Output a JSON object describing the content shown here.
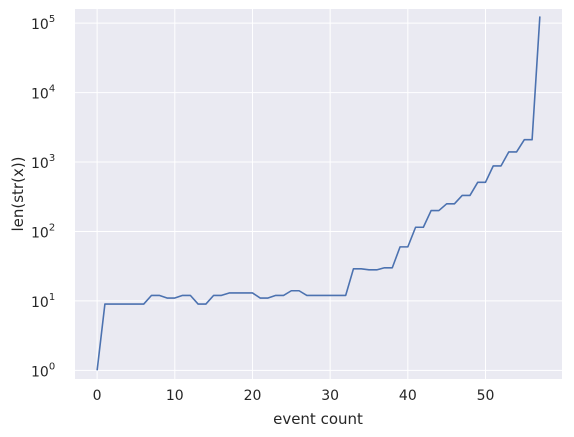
{
  "chart_data": {
    "type": "line",
    "xlabel": "event count",
    "ylabel": "len(str(x))",
    "yscale": "log",
    "xlim": [
      -2.85,
      59.85
    ],
    "ylim": [
      0.75,
      160000
    ],
    "grid": true,
    "background": "#eaeaf2",
    "line_color": "#4c72b0",
    "x_ticks": [
      0,
      10,
      20,
      30,
      40,
      50
    ],
    "x_tick_labels": [
      "0",
      "10",
      "20",
      "30",
      "40",
      "50"
    ],
    "y_ticks": [
      1,
      10,
      100,
      1000,
      10000,
      100000
    ],
    "y_tick_labels": [
      {
        "base": "10",
        "exp": "0"
      },
      {
        "base": "10",
        "exp": "1"
      },
      {
        "base": "10",
        "exp": "2"
      },
      {
        "base": "10",
        "exp": "3"
      },
      {
        "base": "10",
        "exp": "4"
      },
      {
        "base": "10",
        "exp": "5"
      }
    ],
    "series": [
      {
        "x": [
          0,
          1,
          2,
          3,
          4,
          5,
          6,
          7,
          8,
          9,
          10,
          11,
          12,
          13,
          14,
          15,
          16,
          17,
          18,
          19,
          20,
          21,
          22,
          23,
          24,
          25,
          26,
          27,
          28,
          29,
          30,
          31,
          32,
          33,
          34,
          35,
          36,
          37,
          38,
          39,
          40,
          41,
          42,
          43,
          44,
          45,
          46,
          47,
          48,
          49,
          50,
          51,
          52,
          53,
          54,
          55,
          56,
          57
        ],
        "y": [
          1,
          9,
          9,
          9,
          9,
          9,
          9,
          12,
          12,
          11,
          11,
          12,
          12,
          9,
          9,
          12,
          12,
          13,
          13,
          13,
          13,
          11,
          11,
          12,
          12,
          14,
          14,
          12,
          12,
          12,
          12,
          12,
          12,
          29,
          29,
          28,
          28,
          30,
          30,
          60,
          60,
          115,
          115,
          200,
          200,
          250,
          250,
          330,
          330,
          510,
          510,
          880,
          880,
          1400,
          1400,
          2100,
          2100,
          125000
        ]
      }
    ]
  }
}
